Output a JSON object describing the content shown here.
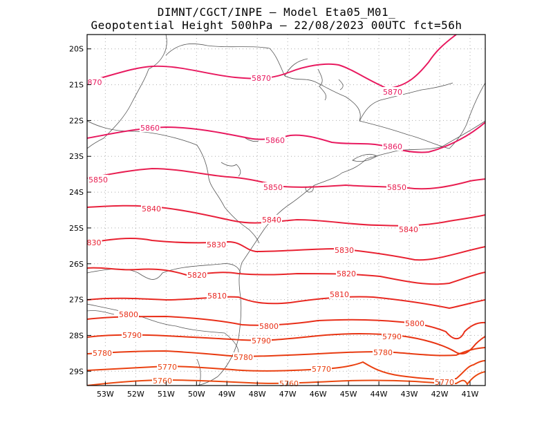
{
  "header": {
    "line1": "DIMNT/CGCT/INPE –  Model Eta05_M01_",
    "line2": "Geopotential Height 500hPa –  22/08/2023 00UTC fct=56h"
  },
  "map": {
    "lon_range": [
      -53.6,
      -40.5
    ],
    "lat_range": [
      -19.6,
      -29.4
    ],
    "lon_ticks": [
      "53W",
      "52W",
      "51W",
      "50W",
      "49W",
      "48W",
      "47W",
      "46W",
      "45W",
      "44W",
      "43W",
      "42W",
      "41W"
    ],
    "lat_ticks": [
      "20S",
      "21S",
      "22S",
      "23S",
      "24S",
      "25S",
      "26S",
      "27S",
      "28S",
      "29S"
    ],
    "contour_levels": [
      {
        "value": "5870",
        "color": "#e8195f"
      },
      {
        "value": "5860",
        "color": "#e8195f"
      },
      {
        "value": "5850",
        "color": "#e81e50"
      },
      {
        "value": "5840",
        "color": "#e8203c"
      },
      {
        "value": "5830",
        "color": "#e82030"
      },
      {
        "value": "5820",
        "color": "#e82528"
      },
      {
        "value": "5810",
        "color": "#e82820"
      },
      {
        "value": "5800",
        "color": "#e82e18"
      },
      {
        "value": "5790",
        "color": "#e83412"
      },
      {
        "value": "5780",
        "color": "#e83a10"
      },
      {
        "value": "5770",
        "color": "#ea4010"
      },
      {
        "value": "5760",
        "color": "#ea4810"
      }
    ],
    "labels": {
      "l5870": [
        "870",
        "5870",
        "5870"
      ],
      "l5860": [
        "5860",
        "5860",
        "5860"
      ],
      "l5850": [
        "5850",
        "5850",
        "5850"
      ],
      "l5840": [
        "5840",
        "5840",
        "5840"
      ],
      "l5830": [
        "830",
        "5830",
        "5830"
      ],
      "l5820": [
        "5820",
        "5820"
      ],
      "l5810": [
        "5810",
        "5810"
      ],
      "l5800": [
        "5800",
        "5800",
        "5800"
      ],
      "l5790": [
        "5790",
        "5790",
        "5790"
      ],
      "l5780": [
        "5780",
        "5780",
        "5780"
      ],
      "l5770": [
        "5770",
        "5770",
        "5770"
      ],
      "l5760": [
        "5760",
        "5760"
      ]
    }
  }
}
